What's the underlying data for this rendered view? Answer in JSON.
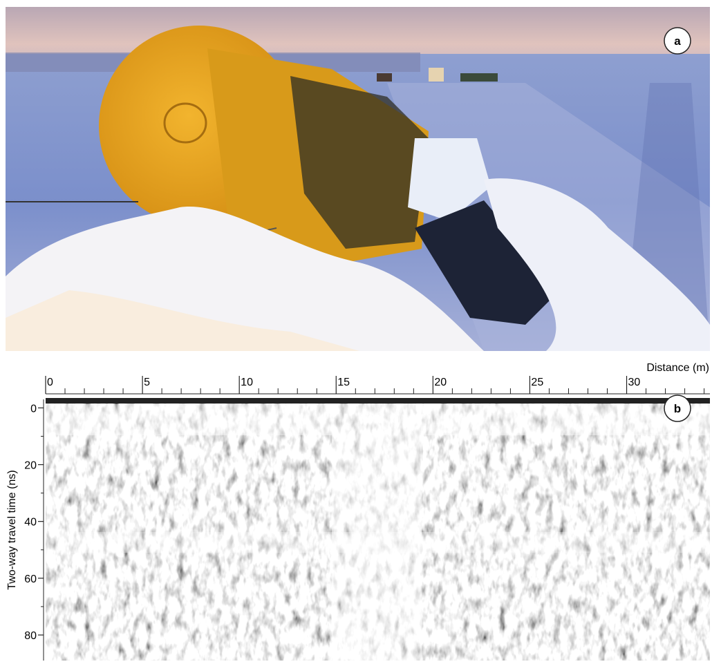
{
  "panel_a": {
    "label": "a"
  },
  "chart_data": {
    "type": "radargram",
    "panel_label": "b",
    "x_label": "Distance (m)",
    "y_label": "Two-way travel time (ns)",
    "xlim": [
      0,
      34.3
    ],
    "xticks": [
      0,
      5,
      10,
      15,
      20,
      25,
      30
    ],
    "xminorticks": [
      1,
      2,
      3,
      4,
      6,
      7,
      8,
      9,
      11,
      12,
      13,
      14,
      16,
      17,
      18,
      19,
      21,
      22,
      23,
      24,
      26,
      27,
      28,
      29,
      31,
      32,
      33,
      34
    ],
    "ylim": [
      -3,
      89
    ],
    "yticks": [
      0,
      20,
      40,
      60,
      80
    ],
    "yminorticks": [
      10,
      30,
      50,
      70
    ]
  }
}
